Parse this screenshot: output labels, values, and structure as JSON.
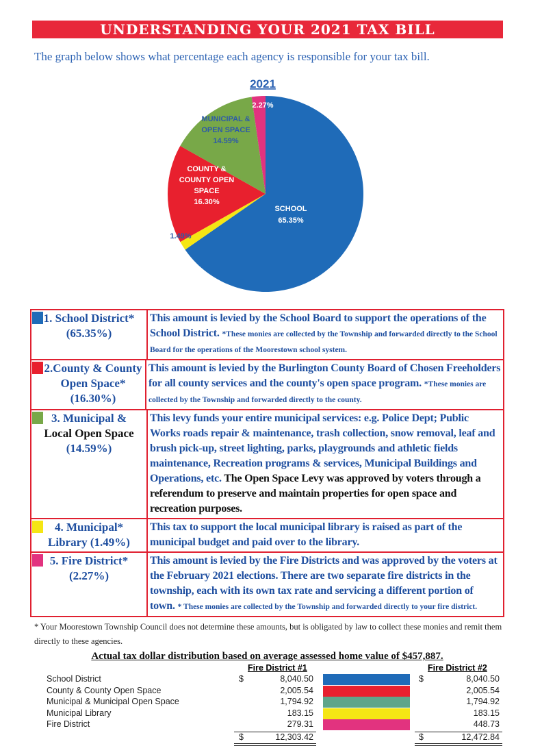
{
  "banner": "UNDERSTANDING YOUR 2021 TAX BILL",
  "intro": "The graph below shows what percentage each agency is responsible for your tax bill.",
  "chart_data": {
    "type": "pie",
    "title": "2021",
    "slices": [
      {
        "label": "SCHOOL",
        "value": 65.35,
        "value_label": "65.35%",
        "color": "#1f6bb8"
      },
      {
        "label": "",
        "value": 1.49,
        "value_label": "1.49%",
        "color": "#f5e614"
      },
      {
        "label": "COUNTY & COUNTY OPEN SPACE",
        "value": 16.3,
        "value_label": "16.30%",
        "color": "#e8202e"
      },
      {
        "label": "MUNICIPAL & OPEN SPACE",
        "value": 14.59,
        "value_label": "14.59%",
        "color": "#78a848"
      },
      {
        "label": "",
        "value": 2.27,
        "value_label": "2.27%",
        "color": "#e2337f"
      }
    ]
  },
  "legend": [
    {
      "title": "1. School District*",
      "pct": "(65.35%)",
      "color": "#1f6bb8",
      "text": "This amount is levied by the School Board to support the operations of the School District.",
      "note": "*These monies are collected by the Township and forwarded directly to the School Board for the operations of the Moorestown school system."
    },
    {
      "title": "2.County & County Open Space*",
      "pct": "(16.30%)",
      "color": "#e8202e",
      "text": "This amount is levied by the Burlington County Board of Chosen Freeholders for all county services and the county's open space program.",
      "note": "*These monies are collected by the Township and forwarded directly to the county."
    },
    {
      "title": "3. Municipal &",
      "title2": "Local Open Space",
      "pct": "(14.59%)",
      "color": "#78a848",
      "text": "This levy funds your entire municipal services: e.g. Police Dept; Public Works roads repair & maintenance, trash collection, snow removal, leaf and brush pick-up, street lighting, parks, playgrounds and athletic fields maintenance, Recreation programs & services, Municipal Buildings and Operations, etc.",
      "note": "The Open Space Levy was approved by voters through a referendum to preserve and maintain properties for open space and recreation purposes."
    },
    {
      "title": "4. Municipal*",
      "pct": "Library  (1.49%)",
      "color": "#f5e614",
      "text": "This tax to support the local municipal library is raised as part of the municipal budget and paid over to the library."
    },
    {
      "title": "5. Fire District*",
      "pct": "(2.27%)",
      "color": "#e2337f",
      "text": "This amount is levied by the Fire Districts and was approved by the voters at the February 2021 elections.  There are two separate fire districts in the township, each with its own tax rate and servicing a different portion of town.",
      "note": "* These monies are collected by the Township and forwarded directly to your fire district."
    }
  ],
  "footnote": "* Your Moorestown Township Council does not determine these amounts, but is obligated by law to collect these monies and remit them directly to these agencies.",
  "distribution": {
    "title": "Actual tax dollar distribution based on average assessed home value of $457,887.",
    "col1": "Fire District #1",
    "col2": "Fire District #2",
    "currency": "$",
    "rows": [
      {
        "label": "School District",
        "fd1": "8,040.50",
        "fd2": "8,040.50",
        "color": "#1f6bb8"
      },
      {
        "label": "County & County Open Space",
        "fd1": "2,005.54",
        "fd2": "2,005.54",
        "color": "#e8202e"
      },
      {
        "label": "Municipal & Municipal Open Space",
        "fd1": "1,794.92",
        "fd2": "1,794.92",
        "color": "#5fa58a"
      },
      {
        "label": "Municipal Library",
        "fd1": "183.15",
        "fd2": "183.15",
        "color": "#f5e614"
      },
      {
        "label": "Fire District",
        "fd1": "279.31",
        "fd2": "448.73",
        "color": "#e2337f"
      }
    ],
    "total1": "12,303.42",
    "total2": "12,472.84"
  }
}
